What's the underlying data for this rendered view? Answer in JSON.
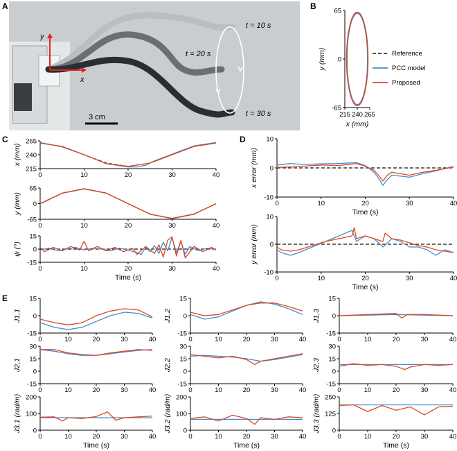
{
  "colors": {
    "reference": "#111111",
    "pcc": "#3d8fd6",
    "proposed": "#e2461b",
    "photo_bg": "#c9cdcf",
    "robot_dark": "#2a2d33",
    "robot_mid": "#6a6f76",
    "robot_light": "#b9bec3"
  },
  "panel_letters": {
    "A": "A",
    "B": "B",
    "C": "C",
    "D": "D",
    "E": "E"
  },
  "photo": {
    "t10": "t = 10 s",
    "t20": "t = 20 s",
    "t30": "t = 30 s",
    "axis_y": "y",
    "axis_x": "x",
    "scalebar": "3 cm"
  },
  "legend": {
    "reference": "Reference",
    "pcc": "PCC model",
    "proposed": "Proposed"
  },
  "chart_data": [
    {
      "id": "B",
      "type": "line",
      "xlabel": "x (mm)",
      "ylabel": "y (mm)",
      "xlim": [
        215,
        265
      ],
      "ylim": [
        -65,
        65
      ],
      "xticks": [
        "215",
        "240",
        "265"
      ],
      "yticks": [
        "65",
        "0",
        "-65"
      ],
      "series": [
        {
          "name": "Reference",
          "kind": "ellipse",
          "center": [
            240,
            0
          ],
          "radii": [
            21,
            62
          ]
        },
        {
          "name": "PCC model",
          "kind": "ellipse",
          "center": [
            240,
            0
          ],
          "radii": [
            20.5,
            61
          ]
        },
        {
          "name": "Proposed",
          "kind": "ellipse",
          "center": [
            240,
            0
          ],
          "radii": [
            21.5,
            62.5
          ]
        }
      ]
    },
    {
      "id": "C1",
      "type": "line",
      "ylabel": "x (mm)",
      "xlim": [
        0,
        40
      ],
      "ylim": [
        215,
        265
      ],
      "yticks": [
        "265",
        "240",
        "215"
      ],
      "series": [
        {
          "name": "Reference",
          "x": [
            0,
            5,
            10,
            15,
            20,
            25,
            30,
            35,
            40
          ],
          "y": [
            261,
            255,
            240,
            225,
            219,
            225,
            240,
            255,
            261
          ]
        },
        {
          "name": "PCC model",
          "x": [
            0,
            5,
            10,
            15,
            20,
            22,
            24,
            26,
            30,
            35,
            40
          ],
          "y": [
            262,
            254,
            240,
            224,
            218,
            218,
            221,
            229,
            241,
            256,
            262
          ]
        },
        {
          "name": "Proposed",
          "x": [
            0,
            5,
            10,
            15,
            20,
            25,
            30,
            35,
            40
          ],
          "y": [
            261,
            255,
            240,
            224,
            219,
            225,
            240,
            255,
            261
          ]
        }
      ]
    },
    {
      "id": "C2",
      "type": "line",
      "ylabel": "y (mm)",
      "xlim": [
        0,
        40
      ],
      "ylim": [
        -65,
        65
      ],
      "yticks": [
        "65",
        "0",
        "-65"
      ],
      "series": [
        {
          "name": "Reference",
          "x": [
            0,
            5,
            10,
            15,
            20,
            25,
            30,
            35,
            40
          ],
          "y": [
            0,
            44,
            62,
            44,
            0,
            -44,
            -62,
            -44,
            0
          ]
        },
        {
          "name": "PCC model",
          "x": [
            0,
            5,
            10,
            15,
            20,
            25,
            30,
            35,
            40
          ],
          "y": [
            -1,
            43,
            61,
            44,
            0,
            -44,
            -61,
            -43,
            0
          ]
        },
        {
          "name": "Proposed",
          "x": [
            0,
            5,
            10,
            15,
            20,
            25,
            30,
            35,
            40
          ],
          "y": [
            0,
            44,
            62,
            44,
            0,
            -44,
            -62,
            -44,
            0
          ]
        }
      ]
    },
    {
      "id": "C3",
      "type": "line",
      "ylabel": "ψ (°)",
      "xlim": [
        0,
        40
      ],
      "ylim": [
        -15,
        15
      ],
      "yticks": [
        "15",
        "0",
        "-15"
      ],
      "series": [
        {
          "name": "Reference",
          "x": [
            0,
            40
          ],
          "y": [
            0,
            0
          ]
        },
        {
          "name": "PCC model",
          "x": [
            0,
            2,
            4,
            6,
            8,
            10,
            12,
            14,
            16,
            18,
            20,
            22,
            23,
            24,
            25,
            26,
            27,
            28,
            29,
            30,
            31,
            32,
            33,
            34,
            36,
            38,
            40
          ],
          "y": [
            -1,
            1,
            -2,
            0,
            2,
            -1,
            1,
            0,
            -2,
            1,
            -1,
            -4,
            -6,
            2,
            -3,
            4,
            -5,
            8,
            -2,
            13,
            -4,
            9,
            -6,
            3,
            -2,
            1,
            0
          ]
        },
        {
          "name": "Proposed",
          "x": [
            0,
            1,
            3,
            5,
            7,
            9,
            10,
            11,
            13,
            15,
            17,
            19,
            21,
            22,
            24,
            26,
            27,
            28,
            29,
            30,
            31,
            32,
            33,
            35,
            37,
            39,
            40
          ],
          "y": [
            2,
            -3,
            2,
            -2,
            3,
            -1,
            9,
            -2,
            3,
            -2,
            2,
            -3,
            1,
            -6,
            3,
            -5,
            5,
            -9,
            10,
            14,
            -8,
            10,
            -10,
            3,
            -3,
            2,
            -1
          ]
        }
      ]
    },
    {
      "id": "D1",
      "type": "line",
      "ylabel": "x error (mm)",
      "xlim": [
        0,
        40
      ],
      "ylim": [
        -10,
        10
      ],
      "yticks": [
        "10",
        "0",
        "-10"
      ],
      "series": [
        {
          "name": "Reference",
          "x": [
            0,
            40
          ],
          "y": [
            0,
            0
          ]
        },
        {
          "name": "PCC model",
          "x": [
            0,
            3,
            6,
            10,
            14,
            18,
            20,
            22,
            23,
            24,
            25,
            26,
            28,
            30,
            33,
            36,
            40
          ],
          "y": [
            1,
            1.5,
            1.2,
            1.4,
            1.5,
            1.8,
            0.8,
            -1.5,
            -3.5,
            -6,
            -4,
            -2.5,
            -2.8,
            -3.2,
            -2,
            -1,
            0.5
          ]
        },
        {
          "name": "Proposed",
          "x": [
            0,
            3,
            6,
            10,
            14,
            18,
            20,
            22,
            23,
            24,
            25,
            26,
            28,
            30,
            33,
            36,
            40
          ],
          "y": [
            0.2,
            0.3,
            0.6,
            1,
            0.8,
            1.5,
            0.6,
            -0.8,
            -2.5,
            -4.5,
            -2.5,
            -1.5,
            -2,
            -2.5,
            -1.5,
            -0.8,
            0.3
          ]
        }
      ]
    },
    {
      "id": "D2",
      "type": "line",
      "ylabel": "y error (mm)",
      "xlim": [
        0,
        40
      ],
      "ylim": [
        -10,
        10
      ],
      "yticks": [
        "10",
        "0",
        "-10"
      ],
      "series": [
        {
          "name": "Reference",
          "x": [
            0,
            40
          ],
          "y": [
            0,
            0
          ]
        },
        {
          "name": "PCC model",
          "x": [
            0,
            1,
            3,
            5,
            8,
            11,
            14,
            17,
            18,
            20,
            22,
            24,
            26,
            28,
            30,
            32,
            34,
            36,
            38,
            40
          ],
          "y": [
            -2,
            -3,
            -4,
            -3,
            -1,
            1,
            3,
            5,
            1,
            3,
            2,
            -1,
            2,
            1,
            -1,
            -1,
            -2,
            -4,
            -2,
            -3
          ]
        },
        {
          "name": "Proposed",
          "x": [
            0,
            1,
            3,
            5,
            8,
            11,
            14,
            17,
            17.5,
            18,
            20,
            22,
            24,
            24.5,
            26,
            28,
            30,
            32,
            34,
            36,
            38,
            40
          ],
          "y": [
            -1,
            -2,
            -2.5,
            -2,
            -0.5,
            1,
            2,
            3,
            6,
            2,
            3,
            2,
            1,
            4,
            2,
            1.5,
            0.5,
            -0.5,
            -1,
            -2,
            -2.5,
            -3
          ]
        }
      ]
    },
    {
      "id": "E11",
      "type": "line",
      "ylabel": "J1,1",
      "xlim": [
        0,
        40
      ],
      "ylim": [
        -15,
        15
      ],
      "yticks": [
        "15",
        "0",
        "-15"
      ],
      "series": [
        {
          "name": "PCC model",
          "x": [
            0,
            5,
            10,
            15,
            20,
            25,
            30,
            35,
            40
          ],
          "y": [
            -6,
            -10,
            -12,
            -10,
            -5,
            0,
            3,
            2,
            -2
          ]
        },
        {
          "name": "Proposed",
          "x": [
            0,
            5,
            10,
            15,
            20,
            25,
            30,
            35,
            40
          ],
          "y": [
            -3,
            -6,
            -8,
            -6,
            0,
            4,
            6,
            5,
            -1
          ]
        }
      ]
    },
    {
      "id": "E12",
      "type": "line",
      "ylabel": "J1,2",
      "xlim": [
        0,
        40
      ],
      "ylim": [
        -15,
        15
      ],
      "yticks": [
        "15",
        "0",
        "-15"
      ],
      "series": [
        {
          "name": "PCC model",
          "x": [
            0,
            5,
            10,
            15,
            20,
            25,
            30,
            35,
            40
          ],
          "y": [
            1,
            -3,
            -1,
            4,
            9,
            12,
            10,
            6,
            1
          ]
        },
        {
          "name": "Proposed",
          "x": [
            0,
            5,
            10,
            15,
            20,
            25,
            30,
            35,
            40
          ],
          "y": [
            3,
            0,
            1,
            5,
            9,
            11,
            11,
            8,
            4
          ]
        }
      ]
    },
    {
      "id": "E13",
      "type": "line",
      "ylabel": "J1,3",
      "xlim": [
        0,
        40
      ],
      "ylim": [
        -15,
        15
      ],
      "yticks": [
        "15",
        "0",
        "-15"
      ],
      "series": [
        {
          "name": "PCC model",
          "x": [
            0,
            10,
            20,
            30,
            40
          ],
          "y": [
            0,
            0.5,
            1,
            0.5,
            0
          ]
        },
        {
          "name": "Proposed",
          "x": [
            0,
            10,
            20,
            22,
            24,
            30,
            40
          ],
          "y": [
            0,
            1,
            2,
            -2,
            1,
            1,
            0
          ]
        }
      ]
    },
    {
      "id": "E21",
      "type": "line",
      "ylabel": "J2,1",
      "xlim": [
        0,
        40
      ],
      "ylim": [
        -15,
        30
      ],
      "yticks": [
        "30",
        "15",
        "0",
        "-15"
      ],
      "series": [
        {
          "name": "PCC model",
          "x": [
            0,
            5,
            10,
            15,
            20,
            25,
            30,
            35,
            40
          ],
          "y": [
            26,
            24,
            21,
            19,
            19,
            21,
            23,
            25,
            26
          ]
        },
        {
          "name": "Proposed",
          "x": [
            0,
            5,
            10,
            15,
            20,
            25,
            30,
            35,
            40
          ],
          "y": [
            26,
            26,
            22,
            20,
            19,
            22,
            24,
            26,
            25
          ]
        }
      ]
    },
    {
      "id": "E22",
      "type": "line",
      "ylabel": "J2,2",
      "xlim": [
        0,
        40
      ],
      "ylim": [
        -15,
        30
      ],
      "yticks": [
        "30",
        "15",
        "0",
        "-15"
      ],
      "series": [
        {
          "name": "PCC model",
          "x": [
            0,
            5,
            10,
            15,
            20,
            25,
            30,
            35,
            40
          ],
          "y": [
            18,
            19,
            18,
            17,
            15,
            12,
            14,
            17,
            20
          ]
        },
        {
          "name": "Proposed",
          "x": [
            0,
            5,
            10,
            15,
            20,
            23,
            25,
            30,
            35,
            40
          ],
          "y": [
            20,
            18,
            16,
            18,
            14,
            8,
            12,
            15,
            18,
            21
          ]
        }
      ]
    },
    {
      "id": "E23",
      "type": "line",
      "ylabel": "J2,3",
      "xlim": [
        0,
        40
      ],
      "ylim": [
        -15,
        30
      ],
      "yticks": [
        "30",
        "15",
        "0",
        "-15"
      ],
      "series": [
        {
          "name": "PCC model",
          "x": [
            0,
            10,
            20,
            30,
            40
          ],
          "y": [
            8,
            8,
            8,
            8,
            8
          ]
        },
        {
          "name": "Proposed",
          "x": [
            0,
            5,
            10,
            15,
            20,
            23,
            25,
            30,
            35,
            40
          ],
          "y": [
            6,
            9,
            7,
            8,
            6,
            2,
            5,
            8,
            7,
            8
          ]
        }
      ]
    },
    {
      "id": "E31",
      "type": "line",
      "ylabel": "J3,1 (rad/m)",
      "xlim": [
        0,
        40
      ],
      "ylim": [
        0,
        200
      ],
      "yticks": [
        "200",
        "100",
        "0"
      ],
      "series": [
        {
          "name": "PCC model",
          "x": [
            0,
            10,
            20,
            30,
            40
          ],
          "y": [
            75,
            75,
            75,
            75,
            75
          ]
        },
        {
          "name": "Proposed",
          "x": [
            0,
            5,
            8,
            10,
            15,
            20,
            24,
            27,
            30,
            35,
            40
          ],
          "y": [
            78,
            80,
            55,
            75,
            70,
            82,
            110,
            60,
            75,
            80,
            85
          ]
        }
      ]
    },
    {
      "id": "E32",
      "type": "line",
      "ylabel": "J3,2 (rad/m)",
      "xlim": [
        0,
        40
      ],
      "ylim": [
        0,
        200
      ],
      "yticks": [
        "200",
        "100",
        "0"
      ],
      "series": [
        {
          "name": "PCC model",
          "x": [
            0,
            10,
            20,
            30,
            40
          ],
          "y": [
            65,
            65,
            65,
            65,
            65
          ]
        },
        {
          "name": "Proposed",
          "x": [
            0,
            5,
            10,
            15,
            20,
            23,
            25,
            30,
            35,
            40
          ],
          "y": [
            70,
            80,
            55,
            90,
            70,
            35,
            75,
            65,
            80,
            75
          ]
        }
      ]
    },
    {
      "id": "E33",
      "type": "line",
      "ylabel": "J3,3 (rad/m)",
      "xlim": [
        0,
        40
      ],
      "ylim": [
        0,
        250
      ],
      "yticks": [
        "250",
        "125",
        "0"
      ],
      "series": [
        {
          "name": "PCC model",
          "x": [
            0,
            10,
            20,
            30,
            40
          ],
          "y": [
            190,
            190,
            190,
            190,
            190
          ]
        },
        {
          "name": "Proposed",
          "x": [
            0,
            5,
            10,
            15,
            20,
            25,
            30,
            35,
            40
          ],
          "y": [
            185,
            190,
            140,
            185,
            150,
            175,
            115,
            175,
            180
          ]
        }
      ]
    }
  ],
  "time_label": "Time (s)",
  "time_ticks": [
    "0",
    "10",
    "20",
    "30",
    "40"
  ]
}
